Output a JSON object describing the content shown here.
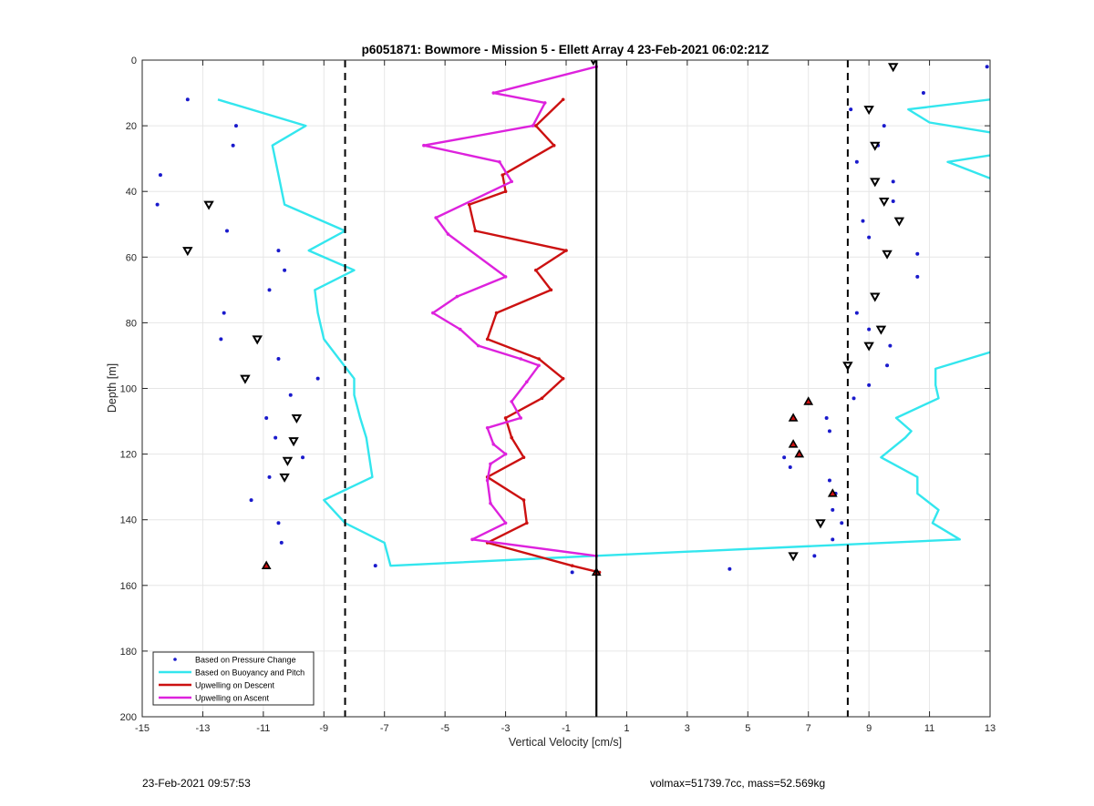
{
  "chart_data": {
    "type": "line",
    "title": "p6051871: Bowmore - Mission 5 - Ellett Array 4 23-Feb-2021 06:02:21Z",
    "xlabel": "Vertical Velocity [cm/s]",
    "ylabel": "Depth [m]",
    "xlim": [
      -15,
      13
    ],
    "ylim": [
      0,
      200
    ],
    "y_reversed": true,
    "grid": true,
    "legend_position": "bottom-left",
    "xticks": [
      -15,
      -13,
      -11,
      -9,
      -7,
      -5,
      -3,
      -1,
      1,
      3,
      5,
      7,
      9,
      11,
      13
    ],
    "yticks": [
      0,
      20,
      40,
      60,
      80,
      100,
      120,
      140,
      160,
      180,
      200
    ],
    "reference_lines": [
      {
        "style": "dashed",
        "x": -8.3
      },
      {
        "style": "dashed",
        "x": 8.3
      },
      {
        "style": "solid",
        "x": 0
      }
    ],
    "series": [
      {
        "name": "Based on Pressure Change",
        "kind": "markers",
        "color": "#1a1acc",
        "points": [
          [
            12.9,
            2
          ],
          [
            10.8,
            10
          ],
          [
            -13.5,
            12
          ],
          [
            8.4,
            15
          ],
          [
            9.5,
            20
          ],
          [
            -11.9,
            20
          ],
          [
            -12.0,
            26
          ],
          [
            9.3,
            26
          ],
          [
            8.6,
            31
          ],
          [
            -14.4,
            35
          ],
          [
            9.8,
            37
          ],
          [
            -14.5,
            44
          ],
          [
            9.8,
            43
          ],
          [
            -12.2,
            52
          ],
          [
            8.8,
            49
          ],
          [
            9.0,
            54
          ],
          [
            -10.5,
            58
          ],
          [
            10.6,
            59
          ],
          [
            -10.3,
            64
          ],
          [
            10.6,
            66
          ],
          [
            -10.8,
            70
          ],
          [
            -12.3,
            77
          ],
          [
            8.6,
            77
          ],
          [
            9.0,
            82
          ],
          [
            -12.4,
            85
          ],
          [
            9.7,
            87
          ],
          [
            -10.5,
            91
          ],
          [
            9.6,
            93
          ],
          [
            -9.2,
            97
          ],
          [
            9.0,
            99
          ],
          [
            -10.1,
            102
          ],
          [
            8.5,
            103
          ],
          [
            -10.9,
            109
          ],
          [
            7.6,
            109
          ],
          [
            7.7,
            113
          ],
          [
            -10.6,
            115
          ],
          [
            6.2,
            121
          ],
          [
            -9.7,
            121
          ],
          [
            6.4,
            124
          ],
          [
            -10.8,
            127
          ],
          [
            7.7,
            128
          ],
          [
            -11.4,
            134
          ],
          [
            7.9,
            132
          ],
          [
            7.8,
            137
          ],
          [
            -10.5,
            141
          ],
          [
            8.1,
            141
          ],
          [
            7.8,
            146
          ],
          [
            -10.4,
            147
          ],
          [
            7.2,
            151
          ],
          [
            -7.3,
            154
          ],
          [
            4.4,
            155
          ],
          [
            -0.8,
            156
          ]
        ]
      },
      {
        "name": "Based on Buoyancy and Pitch",
        "kind": "line",
        "color": "#33e6ee",
        "points": [
          [
            -12.5,
            12
          ],
          [
            -9.6,
            20
          ],
          [
            -10.7,
            26
          ],
          [
            -10.5,
            35
          ],
          [
            -10.3,
            44
          ],
          [
            -8.3,
            52
          ],
          [
            -9.5,
            58
          ],
          [
            -8.0,
            64
          ],
          [
            -9.3,
            70
          ],
          [
            -9.2,
            77
          ],
          [
            -9.0,
            85
          ],
          [
            -8.5,
            91
          ],
          [
            -8.0,
            97
          ],
          [
            -8.0,
            102
          ],
          [
            -7.8,
            109
          ],
          [
            -7.6,
            115
          ],
          [
            -7.5,
            121
          ],
          [
            -7.4,
            127
          ],
          [
            -9.0,
            134
          ],
          [
            -8.3,
            141
          ],
          [
            -7.0,
            147
          ],
          [
            -6.8,
            154
          ],
          [
            -0.1,
            151
          ],
          [
            12.0,
            146
          ],
          [
            11.1,
            141
          ],
          [
            11.3,
            137
          ],
          [
            10.6,
            132
          ],
          [
            10.6,
            127
          ],
          [
            9.4,
            121
          ],
          [
            10.2,
            115
          ],
          [
            10.4,
            113
          ],
          [
            9.9,
            109
          ],
          [
            11.3,
            103
          ],
          [
            11.2,
            99
          ],
          [
            11.2,
            94
          ],
          [
            13.0,
            89
          ]
        ],
        "extra_segments": [
          [
            [
              13.0,
              12
            ],
            [
              10.3,
              15
            ],
            [
              11.0,
              19
            ],
            [
              13.0,
              22
            ]
          ],
          [
            [
              13.0,
              29
            ],
            [
              11.6,
              31
            ],
            [
              13.0,
              36
            ]
          ]
        ]
      },
      {
        "name": "Upwelling on Descent",
        "kind": "line",
        "color": "#cc1111",
        "points": [
          [
            -1.1,
            12
          ],
          [
            -2.0,
            20
          ],
          [
            -1.4,
            26
          ],
          [
            -3.1,
            35
          ],
          [
            -3.0,
            40
          ],
          [
            -4.2,
            44
          ],
          [
            -4.0,
            52
          ],
          [
            -1.0,
            58
          ],
          [
            -2.0,
            64
          ],
          [
            -1.5,
            70
          ],
          [
            -3.3,
            77
          ],
          [
            -3.6,
            85
          ],
          [
            -1.9,
            91
          ],
          [
            -1.1,
            97
          ],
          [
            -1.8,
            103
          ],
          [
            -3.0,
            109
          ],
          [
            -2.8,
            115
          ],
          [
            -2.4,
            121
          ],
          [
            -3.6,
            127
          ],
          [
            -2.4,
            134
          ],
          [
            -2.3,
            141
          ],
          [
            -3.6,
            147
          ],
          [
            -0.8,
            154
          ],
          [
            0.1,
            156
          ]
        ]
      },
      {
        "name": "Upwelling on Ascent",
        "kind": "line",
        "color": "#dd22dd",
        "points": [
          [
            0.0,
            2
          ],
          [
            -3.4,
            10
          ],
          [
            -1.7,
            13
          ],
          [
            -2.1,
            20
          ],
          [
            -5.7,
            26
          ],
          [
            -3.2,
            31
          ],
          [
            -2.8,
            37
          ],
          [
            -5.3,
            48
          ],
          [
            -4.9,
            53
          ],
          [
            -3.0,
            66
          ],
          [
            -4.6,
            72
          ],
          [
            -5.4,
            77
          ],
          [
            -4.5,
            82
          ],
          [
            -3.9,
            87
          ],
          [
            -2.5,
            91
          ],
          [
            -1.9,
            93
          ],
          [
            -2.3,
            98
          ],
          [
            -2.8,
            104
          ],
          [
            -2.5,
            109
          ],
          [
            -3.6,
            112
          ],
          [
            -3.4,
            117
          ],
          [
            -3.0,
            120
          ],
          [
            -3.5,
            123
          ],
          [
            -3.6,
            128
          ],
          [
            -3.5,
            135
          ],
          [
            -3.0,
            141
          ],
          [
            -4.1,
            146
          ],
          [
            0.0,
            151
          ]
        ]
      },
      {
        "kind": "markers-open",
        "color": "#000000",
        "points": [
          [
            -0.1,
            0
          ],
          [
            9.8,
            2
          ],
          [
            9.0,
            15
          ],
          [
            9.2,
            26
          ],
          [
            9.2,
            37
          ],
          [
            -12.8,
            44
          ],
          [
            9.5,
            43
          ],
          [
            10.0,
            49
          ],
          [
            -13.5,
            58
          ],
          [
            9.6,
            59
          ],
          [
            9.2,
            72
          ],
          [
            9.4,
            82
          ],
          [
            -11.2,
            85
          ],
          [
            9.0,
            87
          ],
          [
            8.3,
            93
          ],
          [
            -11.6,
            97
          ],
          [
            -9.9,
            109
          ],
          [
            -10.0,
            116
          ],
          [
            -10.2,
            122
          ],
          [
            -10.3,
            127
          ],
          [
            7.4,
            141
          ],
          [
            6.5,
            151
          ]
        ]
      },
      {
        "kind": "markers-filled",
        "color": "#cc1111",
        "points": [
          [
            7.0,
            104
          ],
          [
            6.5,
            109
          ],
          [
            6.5,
            117
          ],
          [
            6.7,
            120
          ],
          [
            7.8,
            132
          ],
          [
            -10.9,
            154
          ],
          [
            0.0,
            156
          ]
        ]
      }
    ]
  },
  "footer": {
    "left": "23-Feb-2021 09:57:53",
    "right": "volmax=51739.7cc, mass=52.569kg"
  }
}
